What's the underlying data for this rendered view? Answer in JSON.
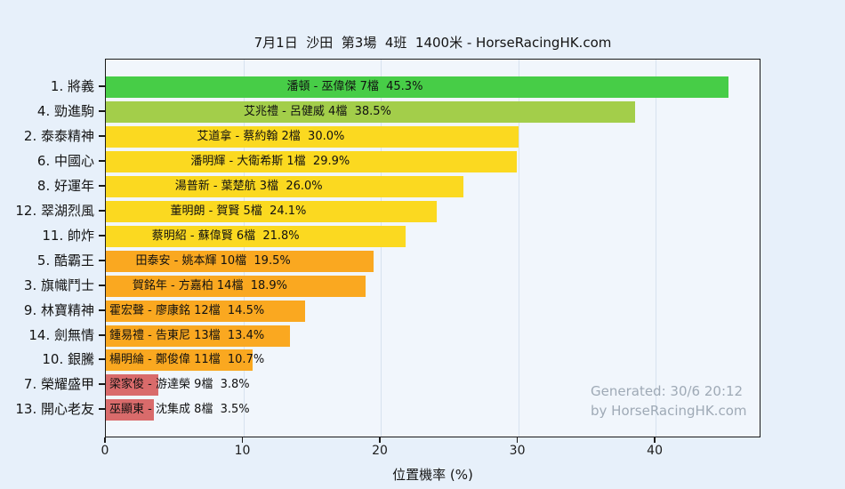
{
  "page": {
    "background": "#e7f0fa",
    "plot_background": "#f1f6fc"
  },
  "chart_data": {
    "type": "bar",
    "orientation": "horizontal",
    "title": "7月1日  沙田  第3場  4班  1400米 - HorseRacingHK.com",
    "xlabel": "位置機率 (%)",
    "xlim": [
      0,
      47.5
    ],
    "xticks": [
      0,
      10,
      20,
      30,
      40
    ],
    "grid": true,
    "legend": "none",
    "value_unit": "%",
    "rows": [
      {
        "horse": "1. 將義",
        "label": "潘頓 - 巫偉傑 7檔  45.3%",
        "value": 45.3,
        "color": "#47cd47"
      },
      {
        "horse": "4. 勁進駒",
        "label": "艾兆禮 - 呂健威 4檔  38.5%",
        "value": 38.5,
        "color": "#a3ce4a"
      },
      {
        "horse": "2. 泰泰精神",
        "label": "艾道拿 - 蔡約翰 2檔  30.0%",
        "value": 30.0,
        "color": "#fbd920"
      },
      {
        "horse": "6. 中國心",
        "label": "潘明輝 - 大衛希斯 1檔  29.9%",
        "value": 29.9,
        "color": "#fbd920"
      },
      {
        "horse": "8. 好運年",
        "label": "湯普新 - 葉楚航 3檔  26.0%",
        "value": 26.0,
        "color": "#fbd920"
      },
      {
        "horse": "12. 翠湖烈風",
        "label": "董明朗 - 賀賢 5檔  24.1%",
        "value": 24.1,
        "color": "#fbd920"
      },
      {
        "horse": "11. 帥炸",
        "label": "蔡明紹 - 蘇偉賢 6檔  21.8%",
        "value": 21.8,
        "color": "#fbd920"
      },
      {
        "horse": "5. 酷霸王",
        "label": "田泰安 - 姚本輝 10檔  19.5%",
        "value": 19.5,
        "color": "#faa820"
      },
      {
        "horse": "3. 旗幟鬥士",
        "label": "賀銘年 - 方嘉柏 14檔  18.9%",
        "value": 18.9,
        "color": "#faa820"
      },
      {
        "horse": "9. 林寶精神",
        "label": "霍宏聲 - 廖康銘 12檔  14.5%",
        "value": 14.5,
        "color": "#faa820"
      },
      {
        "horse": "14. 劍無情",
        "label": "鍾易禮 - 告東尼 13檔  13.4%",
        "value": 13.4,
        "color": "#faa820"
      },
      {
        "horse": "10. 銀騰",
        "label": "楊明綸 - 鄭俊偉 11檔  10.7%",
        "value": 10.7,
        "color": "#faa820"
      },
      {
        "horse": "7. 榮耀盛甲",
        "label": "梁家俊 - 游達榮 9檔  3.8%",
        "value": 3.8,
        "color": "#d96b6b"
      },
      {
        "horse": "13. 開心老友",
        "label": "巫顯東 - 沈集成 8檔  3.5%",
        "value": 3.5,
        "color": "#d96b6b"
      }
    ],
    "watermark": {
      "line1": "Generated: 30/6 20:12",
      "line2": "by HorseRacingHK.com",
      "color": "#9faab6"
    }
  }
}
